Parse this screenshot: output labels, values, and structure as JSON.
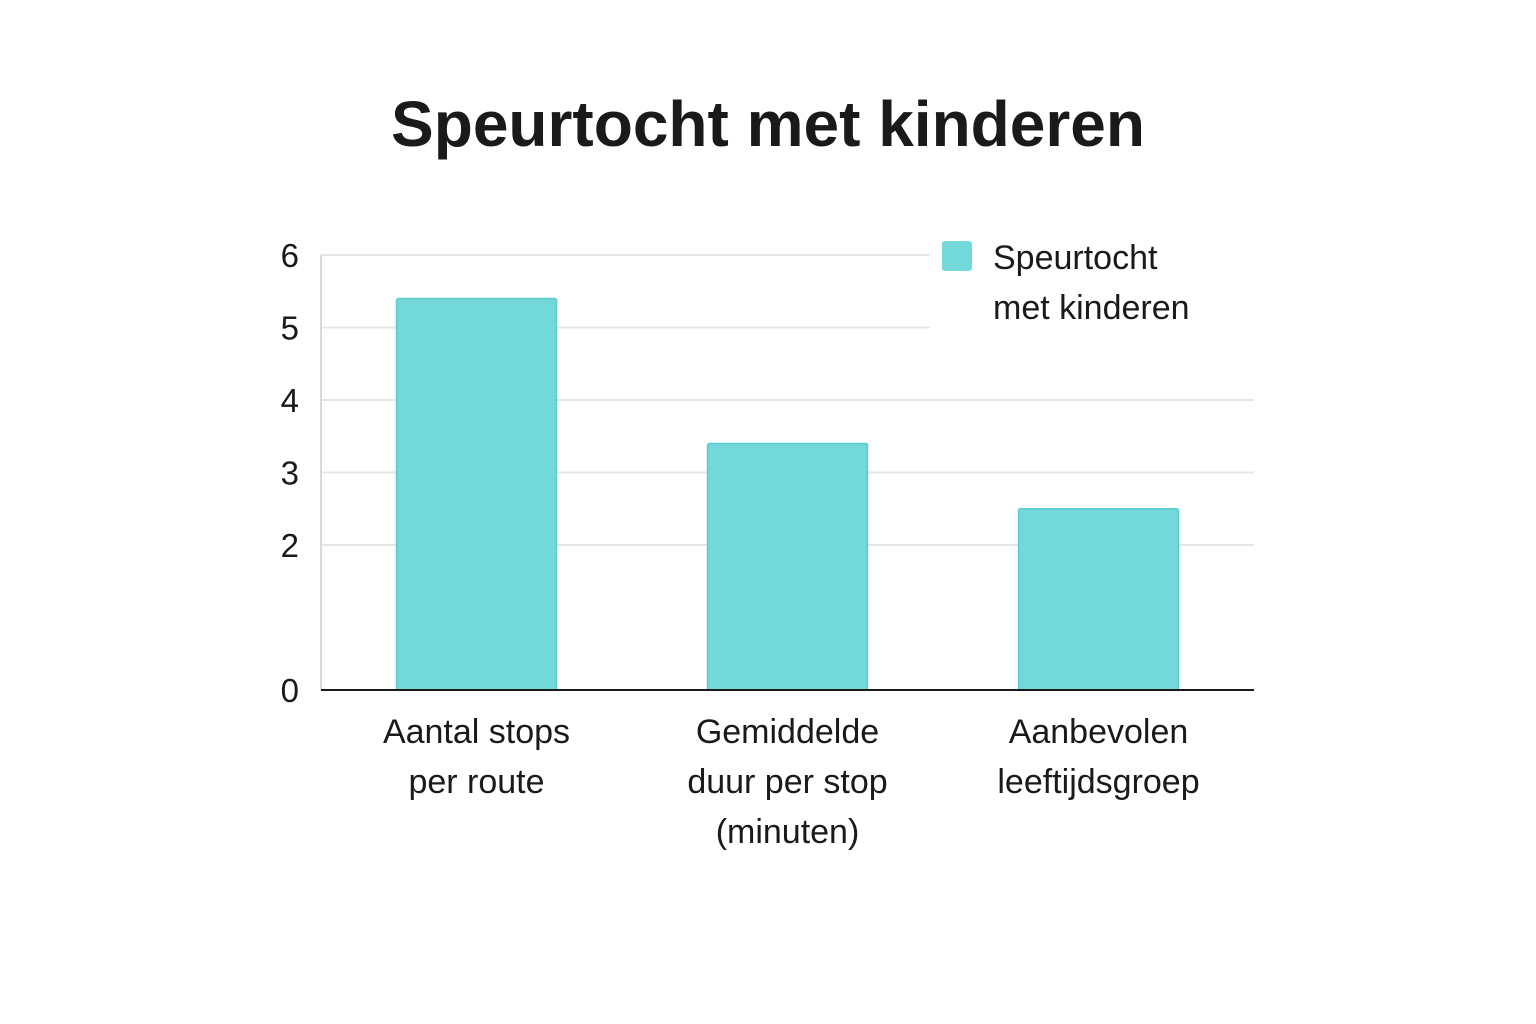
{
  "chart_data": {
    "type": "bar",
    "title": "Speurtocht met kinderen",
    "categories": [
      [
        "Aantal stops",
        "per route"
      ],
      [
        "Gemiddelde",
        "duur per stop",
        "(minuten)"
      ],
      [
        "Aanbevolen",
        "leeftijdsgroep"
      ]
    ],
    "series": [
      {
        "name": [
          "Speurtocht",
          "met kinderen"
        ],
        "values": [
          5.4,
          3.4,
          2.5
        ],
        "color": "#72d8da"
      }
    ],
    "yticks": [
      0,
      2,
      3,
      4,
      5,
      6
    ],
    "ylim": [
      0,
      6
    ],
    "grid": true,
    "legend": "top-right",
    "xlabel": "",
    "ylabel": ""
  }
}
